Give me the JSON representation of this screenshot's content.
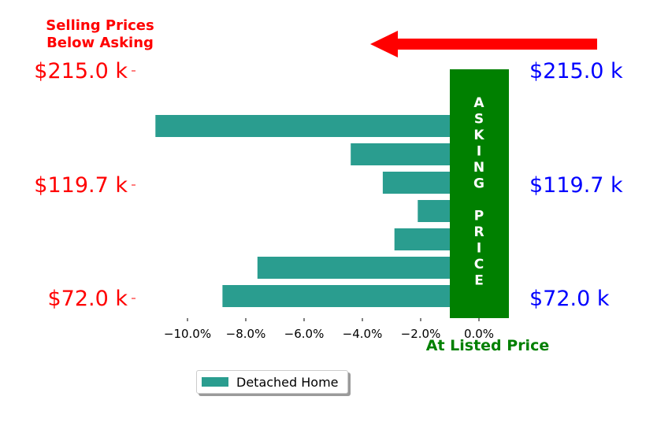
{
  "chart_data": {
    "type": "bar",
    "orientation": "horizontal",
    "series": [
      {
        "name": "Detached Home",
        "color": "#2a9d8f",
        "values": [
          -0.8,
          -11.1,
          -4.4,
          -3.3,
          -2.1,
          -2.9,
          -7.6,
          -8.8
        ]
      }
    ],
    "xlim": [
      -11.5,
      0.5
    ],
    "xticks": [
      -10,
      -8,
      -6,
      -4,
      -2,
      0
    ],
    "xtick_labels": [
      "−10.0%",
      "−8.0%",
      "−6.0%",
      "−4.0%",
      "−2.0%",
      "0.0%"
    ],
    "left_tick_labels": [
      "$215.0 k",
      "$119.7 k",
      "$72.0 k"
    ],
    "right_tick_labels": [
      "$215.0 k",
      "$119.7 k",
      "$72.0 k"
    ],
    "left_tick_color": "#ff0000",
    "right_tick_color": "#0000ff",
    "annotations": {
      "top_left": [
        "Selling Prices",
        "Below Asking"
      ],
      "top_left_color": "#ff0000",
      "arrow_color": "#ff0000",
      "asking_price_letters": [
        "A",
        "S",
        "K",
        "I",
        "N",
        "G",
        "",
        "P",
        "R",
        "I",
        "C",
        "E"
      ],
      "asking_price_bg": "#008000",
      "bottom_label": "At Listed Price",
      "bottom_label_color": "#008000"
    },
    "grid": false,
    "legend_position": "bottom-center"
  }
}
